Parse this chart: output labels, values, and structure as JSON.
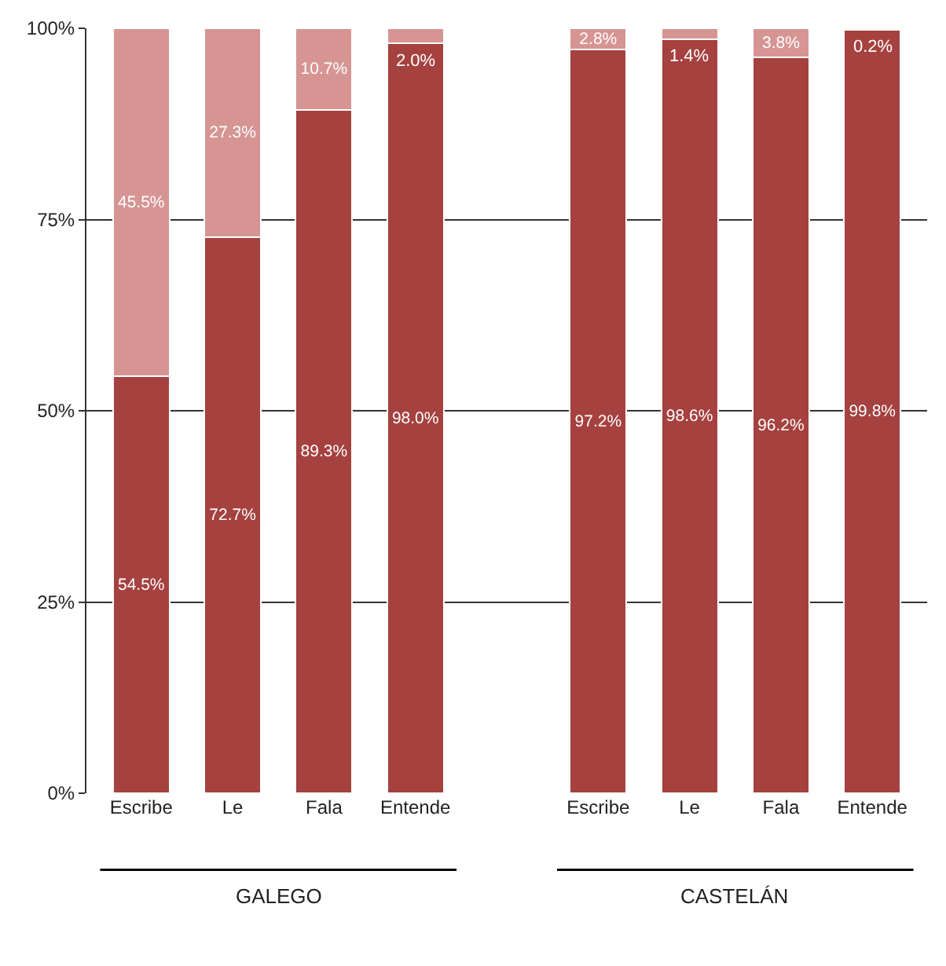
{
  "chart_data": {
    "type": "bar",
    "stacked": true,
    "categories": [
      "Escribe",
      "Le",
      "Fala",
      "Entende",
      null,
      "Escribe",
      "Le",
      "Fala",
      "Entende"
    ],
    "series": [
      {
        "color": "#a5413f",
        "values": [
          54.5,
          72.7,
          89.3,
          98.0,
          null,
          97.2,
          98.6,
          96.2,
          99.8
        ],
        "value_labels": [
          "54.5%",
          "72.7%",
          "89.3%",
          "98.0%",
          null,
          "97.2%",
          "98.6%",
          "96.2%",
          "99.8%"
        ]
      },
      {
        "color": "#d69593",
        "values": [
          45.5,
          27.3,
          10.7,
          2.0,
          null,
          2.8,
          1.4,
          3.8,
          0.2
        ],
        "value_labels": [
          "45.5%",
          "27.3%",
          "10.7%",
          "2.0%",
          null,
          "2.8%",
          "1.4%",
          "3.8%",
          "0.2%"
        ]
      }
    ],
    "ylim": [
      0,
      100
    ],
    "yticks": [
      {
        "value": 0,
        "label": "0%"
      },
      {
        "value": 25,
        "label": "25%"
      },
      {
        "value": 50,
        "label": "50%"
      },
      {
        "value": 75,
        "label": "75%"
      },
      {
        "value": 100,
        "label": "100%"
      }
    ],
    "grid": "y",
    "annotations": [
      "GALEGO",
      "CASTELÁN"
    ]
  }
}
